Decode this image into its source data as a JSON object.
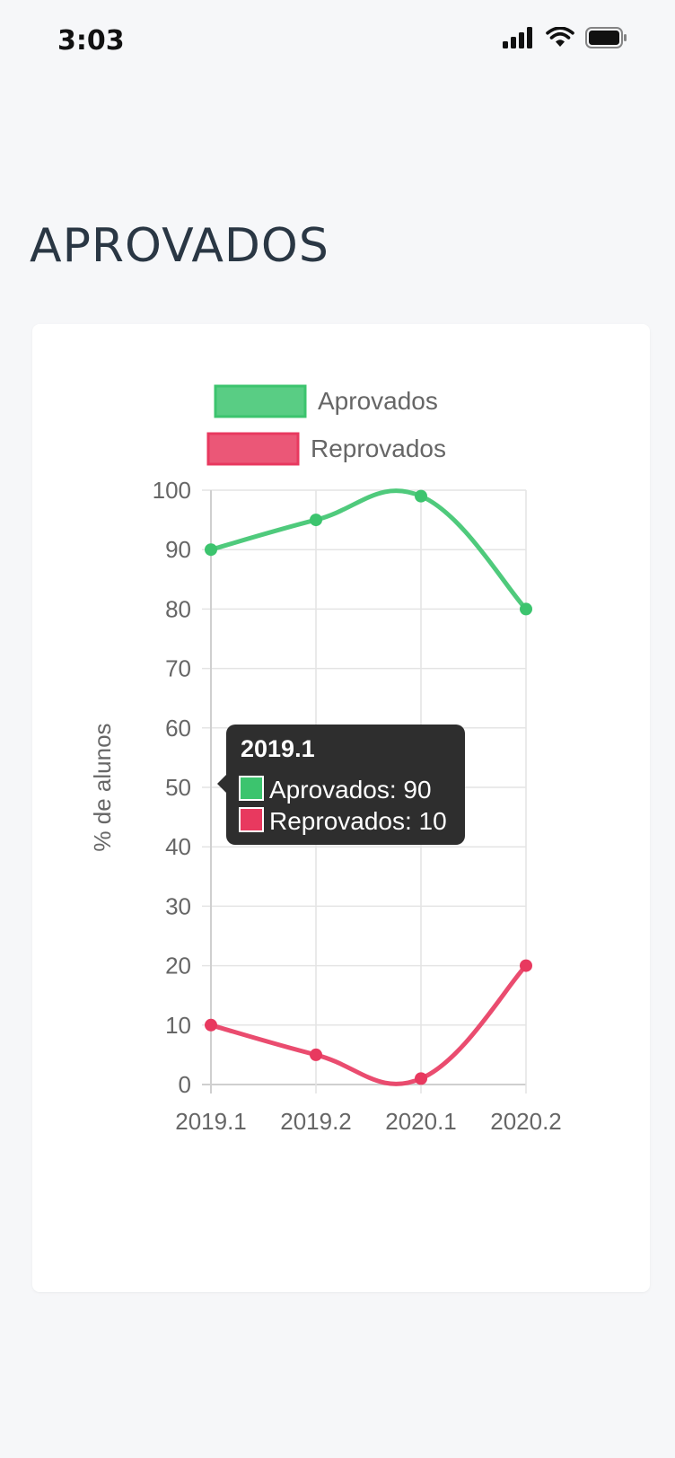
{
  "status_bar": {
    "time": "3:03",
    "icons": [
      "signal-icon",
      "wifi-icon",
      "battery-icon"
    ]
  },
  "page": {
    "title": "APROVADOS"
  },
  "colors": {
    "aprovados": "#3cc46e",
    "reprovados": "#e8395f",
    "tooltip_bg": "#2e2e2e",
    "grid": "#e4e4e4"
  },
  "chart_data": {
    "type": "line",
    "categories": [
      "2019.1",
      "2019.2",
      "2020.1",
      "2020.2"
    ],
    "series": [
      {
        "name": "Aprovados",
        "values": [
          90,
          95,
          99,
          80
        ],
        "color": "#3cc46e"
      },
      {
        "name": "Reprovados",
        "values": [
          10,
          5,
          1,
          20
        ],
        "color": "#e8395f"
      }
    ],
    "ylabel": "% de alunos",
    "ylim": [
      0,
      100
    ],
    "yticks": [
      0,
      10,
      20,
      30,
      40,
      50,
      60,
      70,
      80,
      90,
      100
    ],
    "grid": true,
    "legend_position": "top",
    "tooltip": {
      "title": "2019.1",
      "lines": [
        "Aprovados: 90",
        "Reprovados: 10"
      ]
    }
  }
}
